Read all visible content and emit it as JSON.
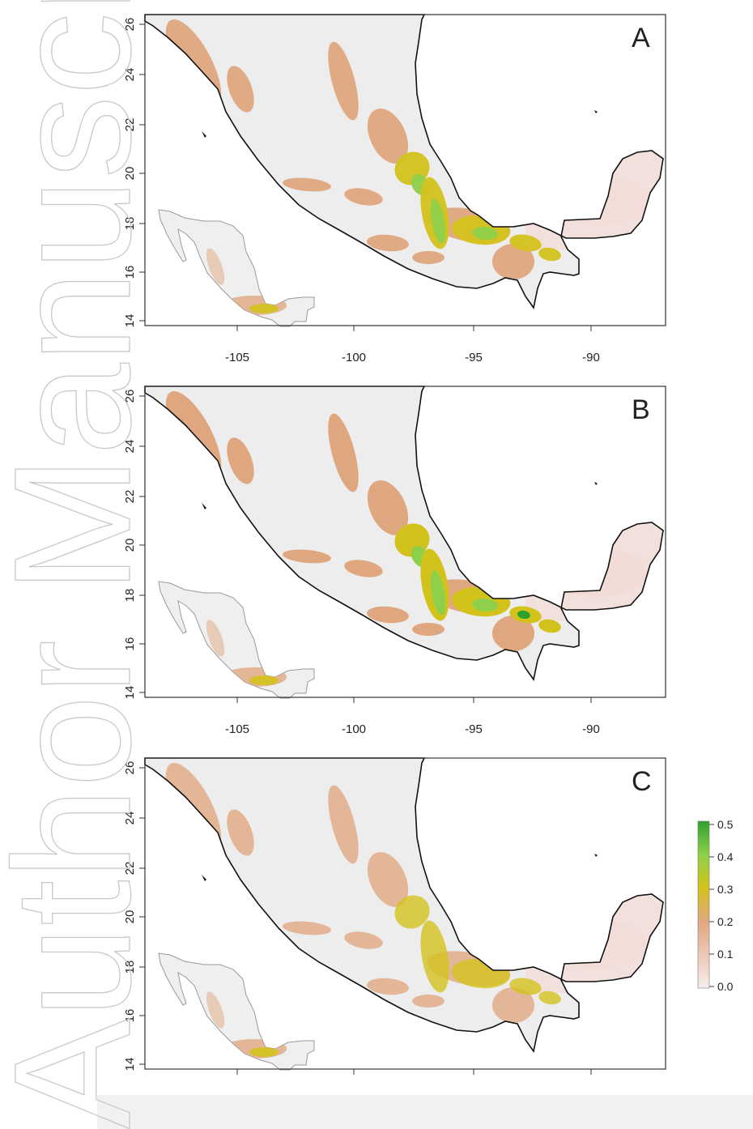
{
  "watermark": {
    "text": "Author Manuscript",
    "color": "#cccccc"
  },
  "colors": {
    "sea": "#ffffff",
    "land": "#ededed",
    "coast": "#111111",
    "frame": "#333333",
    "low": "#f2dcd8",
    "mid": "#dfa77f",
    "high_yellow": "#d4c21c",
    "high_green": "#8fd04a",
    "peak_green": "#2ea02e"
  },
  "maps": [
    {
      "id": "A",
      "panel_label": "A",
      "x_ticks": [
        "-105",
        "-100",
        "-95",
        "-90"
      ],
      "y_ticks": [
        "14",
        "16",
        "18",
        "20",
        "22",
        "24",
        "26"
      ],
      "intensity": 1.0
    },
    {
      "id": "B",
      "panel_label": "B",
      "x_ticks": [
        "-105",
        "-100",
        "-95",
        "-90"
      ],
      "y_ticks": [
        "14",
        "16",
        "18",
        "20",
        "22",
        "24",
        "26"
      ],
      "intensity": 1.15
    },
    {
      "id": "C",
      "panel_label": "C",
      "x_ticks": [
        "-105",
        "-100",
        "-95",
        "-90"
      ],
      "y_ticks": [
        "14",
        "16",
        "18",
        "20",
        "22",
        "24",
        "26"
      ],
      "intensity": 0.6
    }
  ],
  "legend": {
    "ticks": [
      "0.5",
      "0.4",
      "0.3",
      "0.2",
      "0.1",
      "0.0"
    ],
    "scale_max": 0.5,
    "scale_min": 0.0
  }
}
